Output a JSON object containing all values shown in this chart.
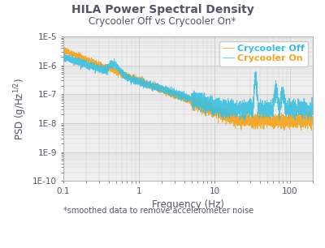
{
  "title": "HILA Power Spectral Density",
  "subtitle": "Crycooler Off vs Crycooler On*",
  "xlabel": "Frequency (Hz)",
  "ylabel": "PSD (g/Hz¹ᐟ²)",
  "footnote": "*smoothed data to remove accelerometer noise",
  "xlim": [
    0.1,
    200
  ],
  "ylim": [
    1e-10,
    1e-05
  ],
  "legend_on_label": "Crycooler On",
  "legend_off_label": "Crycooler Off",
  "color_on": "#3BBFE0",
  "color_off": "#F5A623",
  "bg_color": "#EFEFEF",
  "title_color": "#555566",
  "grid_color": "#CCCCCC",
  "title_fontsize": 10,
  "subtitle_fontsize": 8.5,
  "axis_label_fontsize": 8.5,
  "tick_fontsize": 7.5,
  "legend_fontsize": 8,
  "footnote_fontsize": 7
}
